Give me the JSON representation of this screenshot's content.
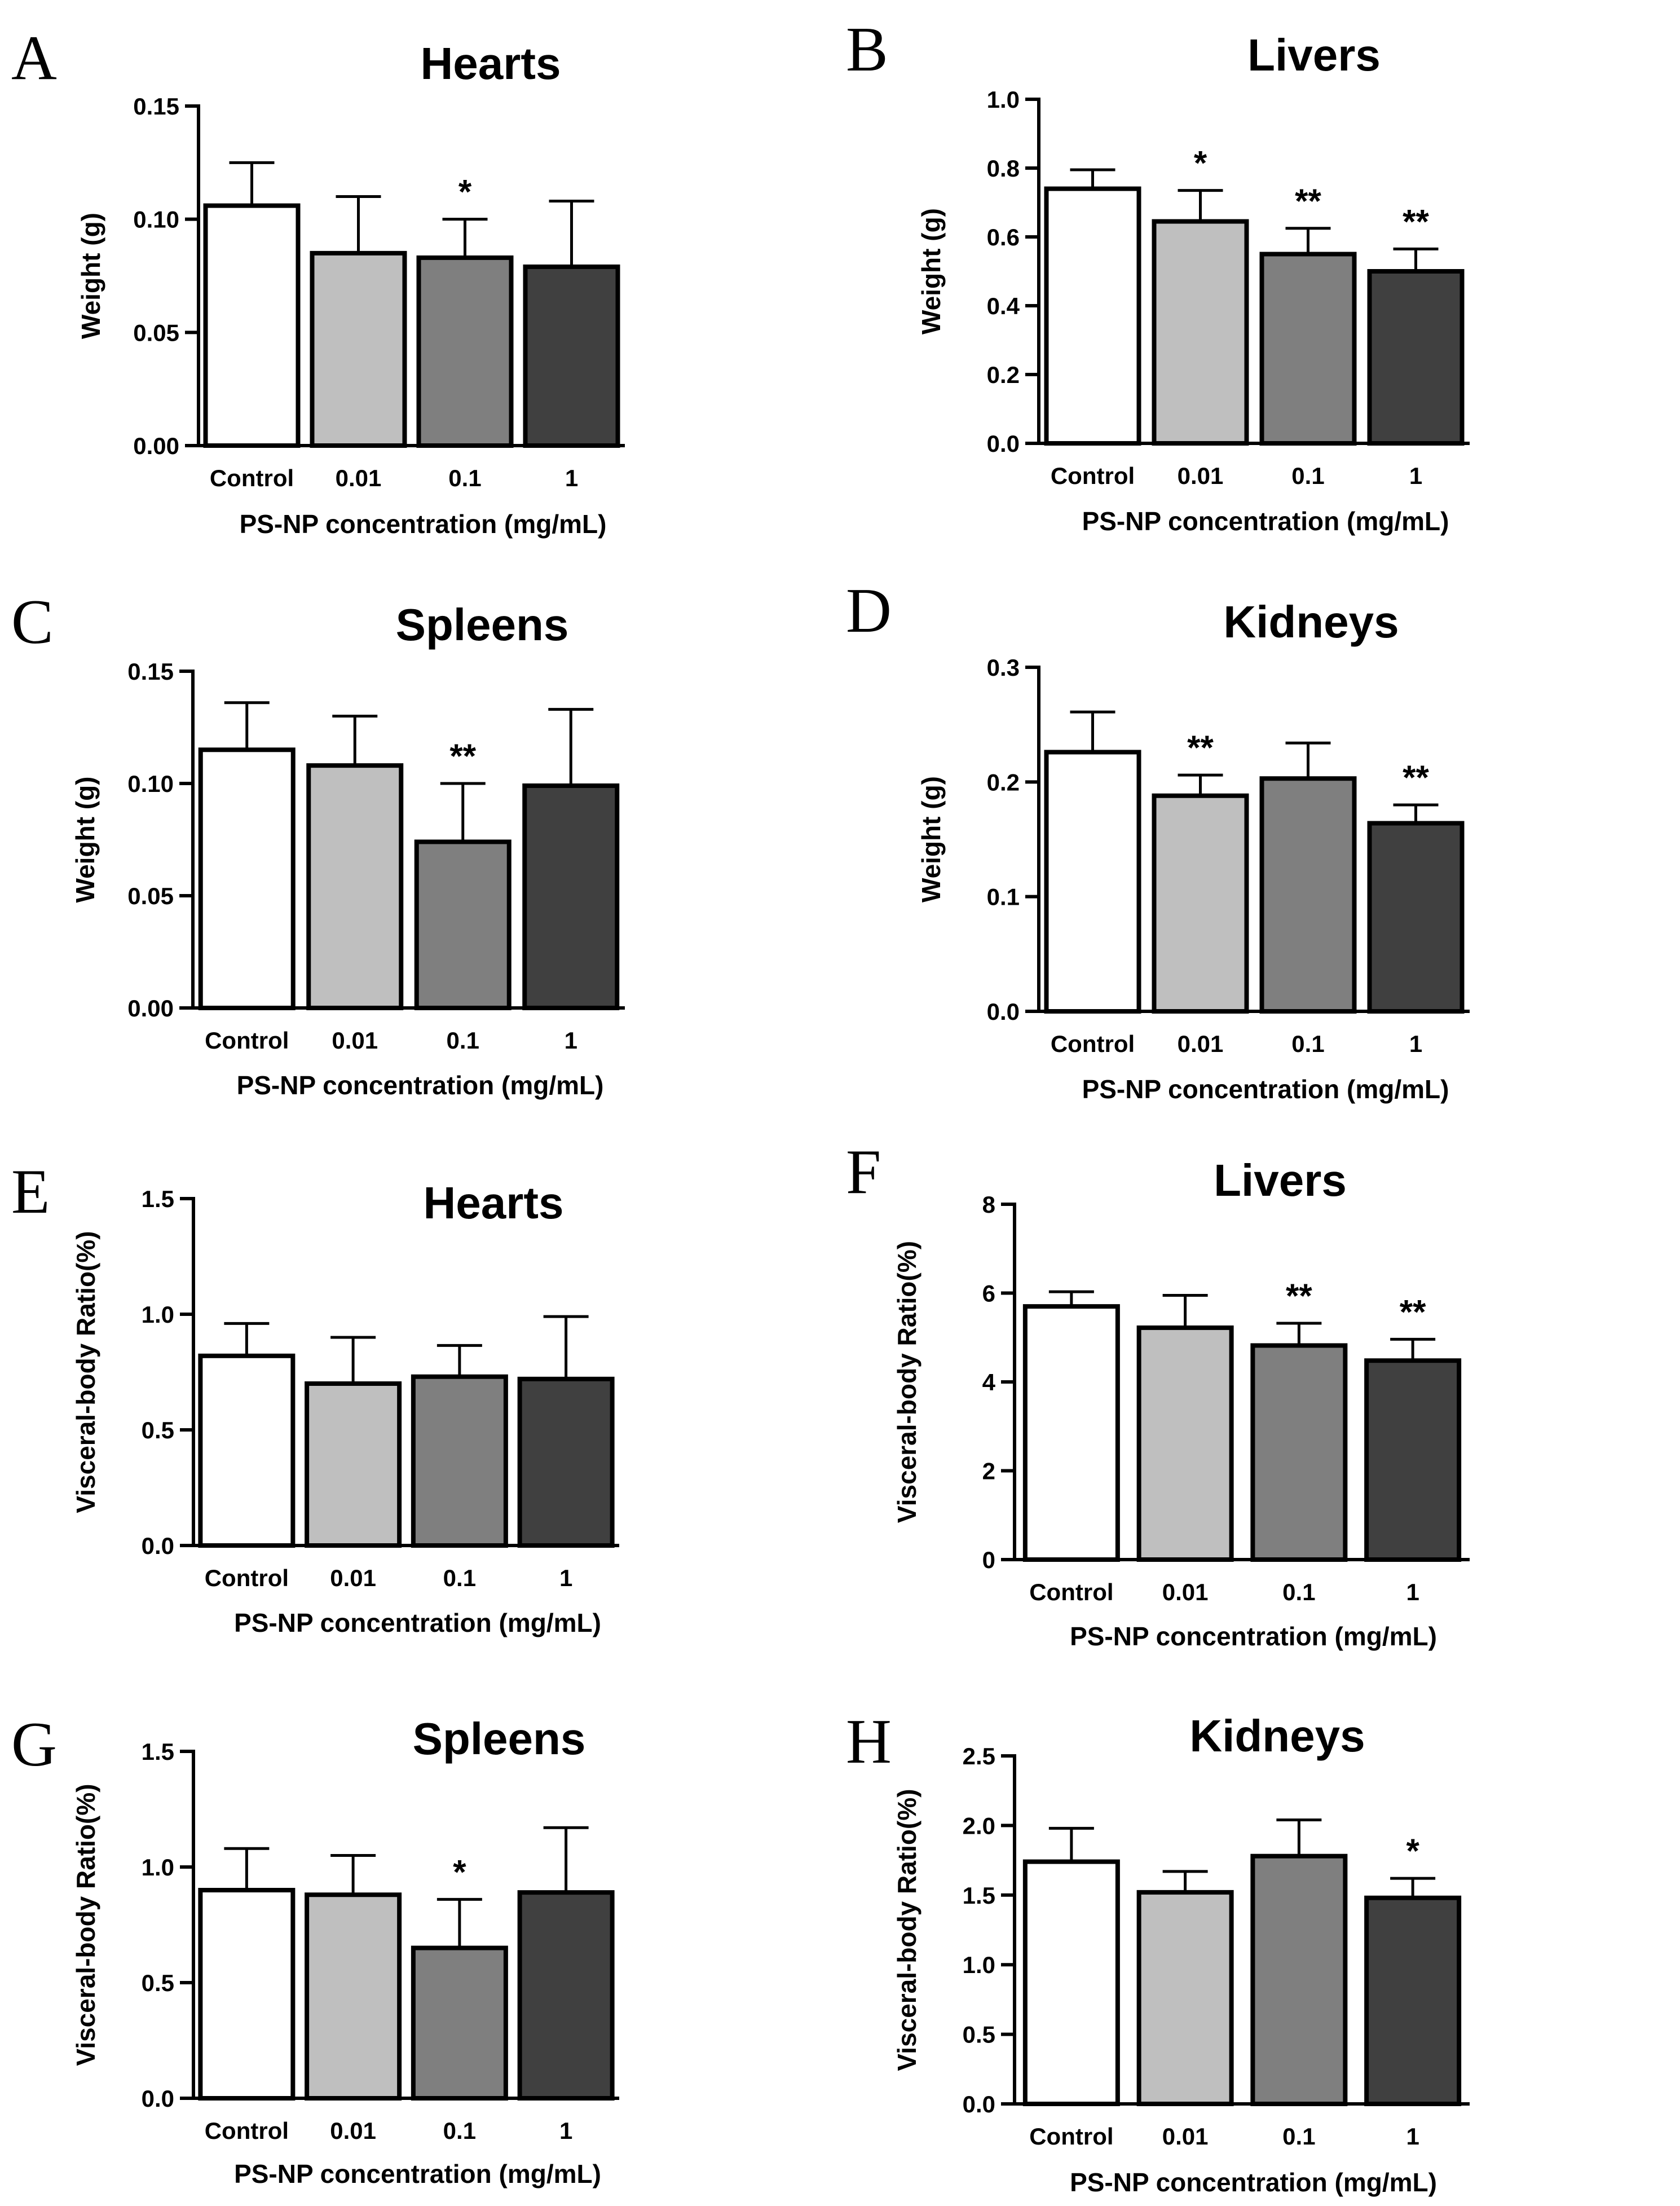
{
  "colors": {
    "Control": "#ffffff",
    "0.01": "#bfbfbf",
    "0.1": "#7f7f7f",
    "1": "#404040",
    "stroke": "#000000"
  },
  "chart_data": [
    {
      "panel": "A",
      "type": "bar",
      "title": "Hearts",
      "xlabel": "PS-NP concentration (mg/mL)",
      "ylabel": "Weight (g)",
      "categories": [
        "Control",
        "0.01",
        "0.1",
        "1"
      ],
      "values": [
        0.106,
        0.085,
        0.083,
        0.079
      ],
      "errors": [
        0.019,
        0.025,
        0.017,
        0.029
      ],
      "significance": [
        "",
        "",
        "*",
        ""
      ],
      "ylim": [
        0,
        0.15
      ],
      "yticks": [
        0.0,
        0.05,
        0.1,
        0.15
      ],
      "ytick_labels": [
        "0.00",
        "0.05",
        "0.10",
        "0.15"
      ]
    },
    {
      "panel": "B",
      "type": "bar",
      "title": "Livers",
      "xlabel": "PS-NP concentration (mg/mL)",
      "ylabel": "Weight (g)",
      "categories": [
        "Control",
        "0.01",
        "0.1",
        "1"
      ],
      "values": [
        0.74,
        0.645,
        0.55,
        0.5
      ],
      "errors": [
        0.055,
        0.09,
        0.075,
        0.065
      ],
      "significance": [
        "",
        "*",
        "**",
        "**"
      ],
      "ylim": [
        0,
        1.0
      ],
      "yticks": [
        0.0,
        0.2,
        0.4,
        0.6,
        0.8,
        1.0
      ],
      "ytick_labels": [
        "0.0",
        "0.2",
        "0.4",
        "0.6",
        "0.8",
        "1.0"
      ]
    },
    {
      "panel": "C",
      "type": "bar",
      "title": "Spleens",
      "xlabel": "PS-NP concentration (mg/mL)",
      "ylabel": "Weight (g)",
      "categories": [
        "Control",
        "0.01",
        "0.1",
        "1"
      ],
      "values": [
        0.115,
        0.108,
        0.074,
        0.099
      ],
      "errors": [
        0.021,
        0.022,
        0.026,
        0.034
      ],
      "significance": [
        "",
        "",
        "**",
        ""
      ],
      "ylim": [
        0,
        0.15
      ],
      "yticks": [
        0.0,
        0.05,
        0.1,
        0.15
      ],
      "ytick_labels": [
        "0.00",
        "0.05",
        "0.10",
        "0.15"
      ]
    },
    {
      "panel": "D",
      "type": "bar",
      "title": "Kidneys",
      "xlabel": "PS-NP concentration (mg/mL)",
      "ylabel": "Weight (g)",
      "categories": [
        "Control",
        "0.01",
        "0.1",
        "1"
      ],
      "values": [
        0.226,
        0.188,
        0.203,
        0.164
      ],
      "errors": [
        0.035,
        0.018,
        0.031,
        0.016
      ],
      "significance": [
        "",
        "**",
        "",
        "**"
      ],
      "ylim": [
        0,
        0.3
      ],
      "yticks": [
        0.0,
        0.1,
        0.2,
        0.3
      ],
      "ytick_labels": [
        "0.0",
        "0.1",
        "0.2",
        "0.3"
      ]
    },
    {
      "panel": "E",
      "type": "bar",
      "title": "Hearts",
      "xlabel": "PS-NP concentration (mg/mL)",
      "ylabel": "Visceral-body Ratio(%)",
      "categories": [
        "Control",
        "0.01",
        "0.1",
        "1"
      ],
      "values": [
        0.82,
        0.7,
        0.73,
        0.72
      ],
      "errors": [
        0.14,
        0.2,
        0.135,
        0.27
      ],
      "significance": [
        "",
        "",
        "",
        ""
      ],
      "ylim": [
        0,
        1.5
      ],
      "yticks": [
        0.0,
        0.5,
        1.0,
        1.5
      ],
      "ytick_labels": [
        "0.0",
        "0.5",
        "1.0",
        "1.5"
      ]
    },
    {
      "panel": "F",
      "type": "bar",
      "title": "Livers",
      "xlabel": "PS-NP concentration (mg/mL)",
      "ylabel": "Visceral-body Ratio(%)",
      "categories": [
        "Control",
        "0.01",
        "0.1",
        "1"
      ],
      "values": [
        5.7,
        5.22,
        4.82,
        4.48
      ],
      "errors": [
        0.33,
        0.73,
        0.5,
        0.48
      ],
      "significance": [
        "",
        "",
        "**",
        "**"
      ],
      "ylim": [
        0,
        8
      ],
      "yticks": [
        0,
        2,
        4,
        6,
        8
      ],
      "ytick_labels": [
        "0",
        "2",
        "4",
        "6",
        "8"
      ]
    },
    {
      "panel": "G",
      "type": "bar",
      "title": "Spleens",
      "xlabel": "PS-NP concentration (mg/mL)",
      "ylabel": "Visceral-body Ratio(%)",
      "categories": [
        "Control",
        "0.01",
        "0.1",
        "1"
      ],
      "values": [
        0.9,
        0.88,
        0.65,
        0.89
      ],
      "errors": [
        0.18,
        0.17,
        0.21,
        0.28
      ],
      "significance": [
        "",
        "",
        "*",
        ""
      ],
      "ylim": [
        0,
        1.5
      ],
      "yticks": [
        0.0,
        0.5,
        1.0,
        1.5
      ],
      "ytick_labels": [
        "0.0",
        "0.5",
        "1.0",
        "1.5"
      ]
    },
    {
      "panel": "H",
      "type": "bar",
      "title": "Kidneys",
      "xlabel": "PS-NP concentration (mg/mL)",
      "ylabel": "Visceral-body Ratio(%)",
      "categories": [
        "Control",
        "0.01",
        "0.1",
        "1"
      ],
      "values": [
        1.74,
        1.52,
        1.78,
        1.48
      ],
      "errors": [
        0.24,
        0.15,
        0.26,
        0.14
      ],
      "significance": [
        "",
        "",
        "",
        "*"
      ],
      "ylim": [
        0,
        2.5
      ],
      "yticks": [
        0.0,
        0.5,
        1.0,
        1.5,
        2.0,
        2.5
      ],
      "ytick_labels": [
        "0.0",
        "0.5",
        "1.0",
        "1.5",
        "2.0",
        "2.5"
      ]
    }
  ]
}
